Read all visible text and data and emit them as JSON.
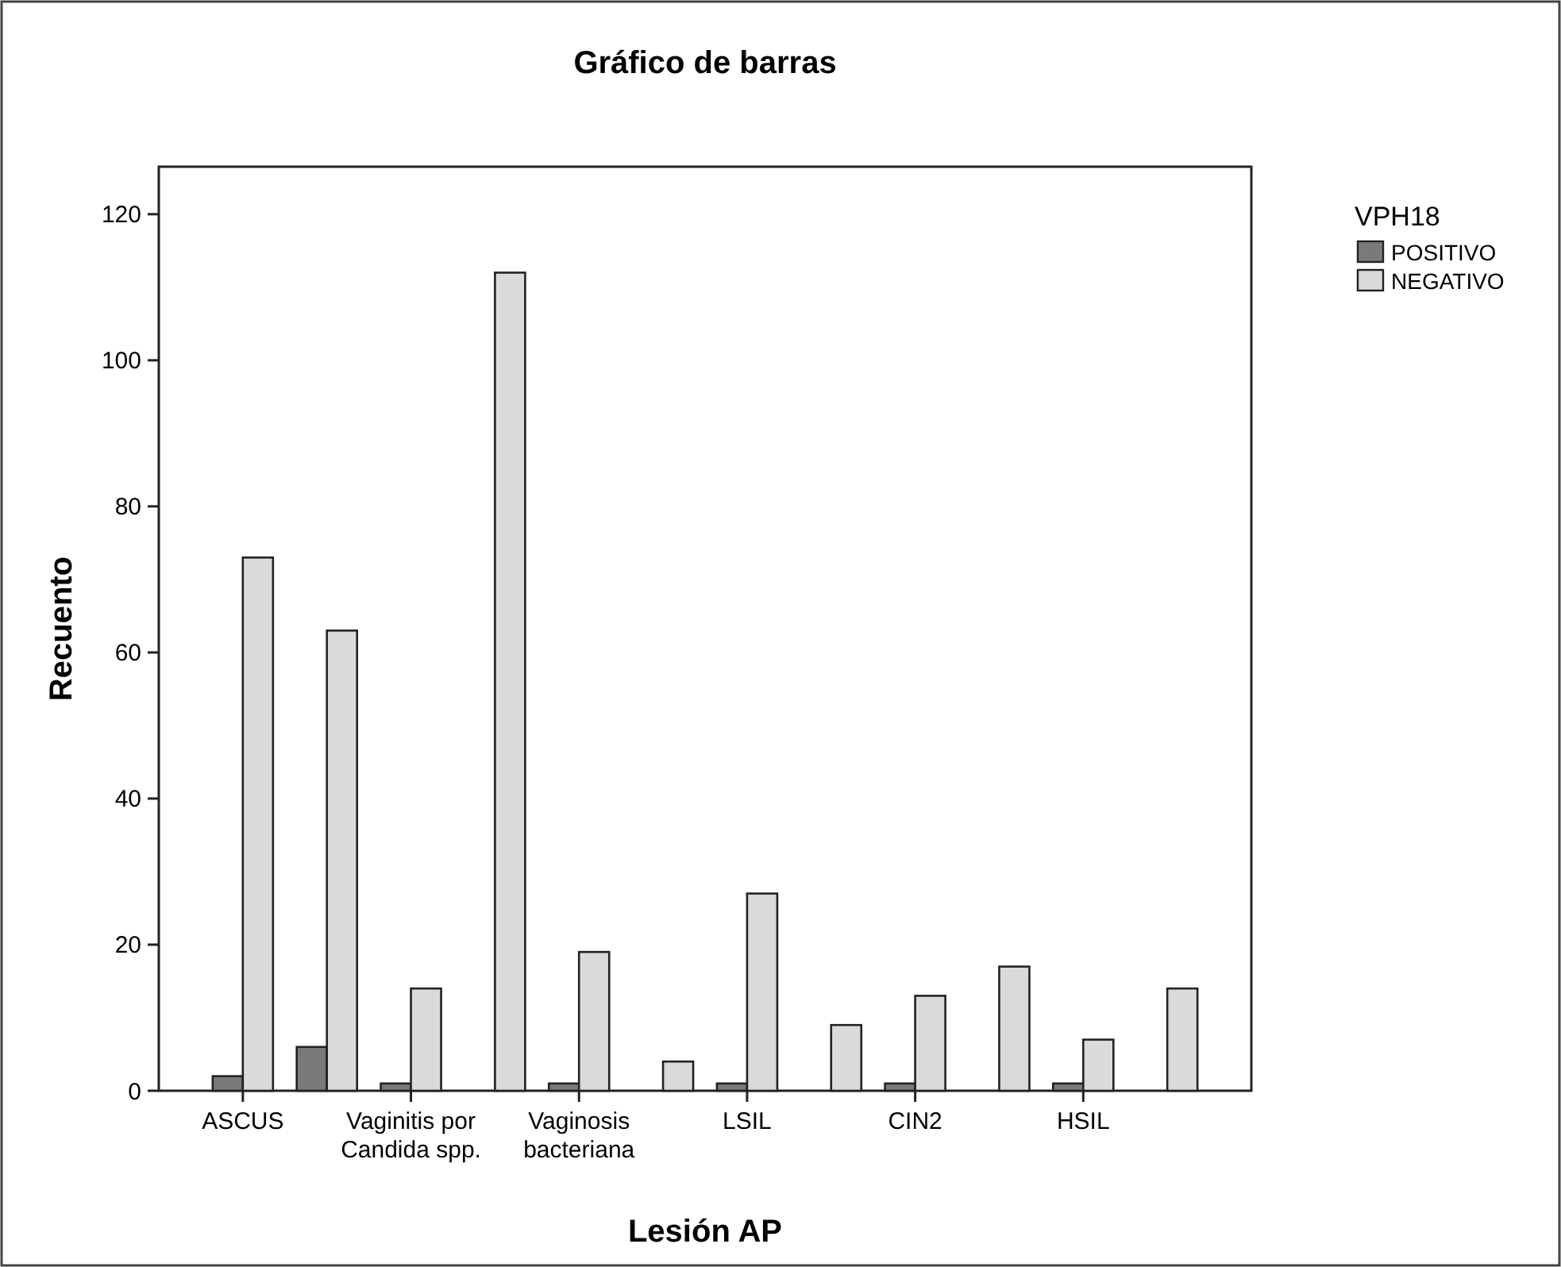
{
  "chart_data": {
    "type": "bar",
    "title": "Gráfico de barras",
    "xlabel": "Lesión AP",
    "ylabel": "Recuento",
    "legend_title": "VPH18",
    "categories": [
      "ASCUS",
      null,
      "Vaginitis por Candida spp.",
      null,
      "Vaginosis bacteriana",
      null,
      "LSIL",
      null,
      "CIN2",
      null,
      "HSIL",
      null
    ],
    "series": [
      {
        "name": "POSITIVO",
        "color": "#7a7a7a",
        "values": [
          2,
          6,
          1,
          null,
          1,
          null,
          1,
          null,
          1,
          null,
          1,
          null
        ]
      },
      {
        "name": "NEGATIVO",
        "color": "#dadada",
        "values": [
          73,
          63,
          14,
          112,
          19,
          4,
          27,
          9,
          13,
          17,
          7,
          14
        ]
      }
    ],
    "ylim": [
      0,
      126.5
    ],
    "yticks": [
      0,
      20,
      40,
      60,
      80,
      100,
      120
    ],
    "grid": false,
    "legend": "top right"
  }
}
